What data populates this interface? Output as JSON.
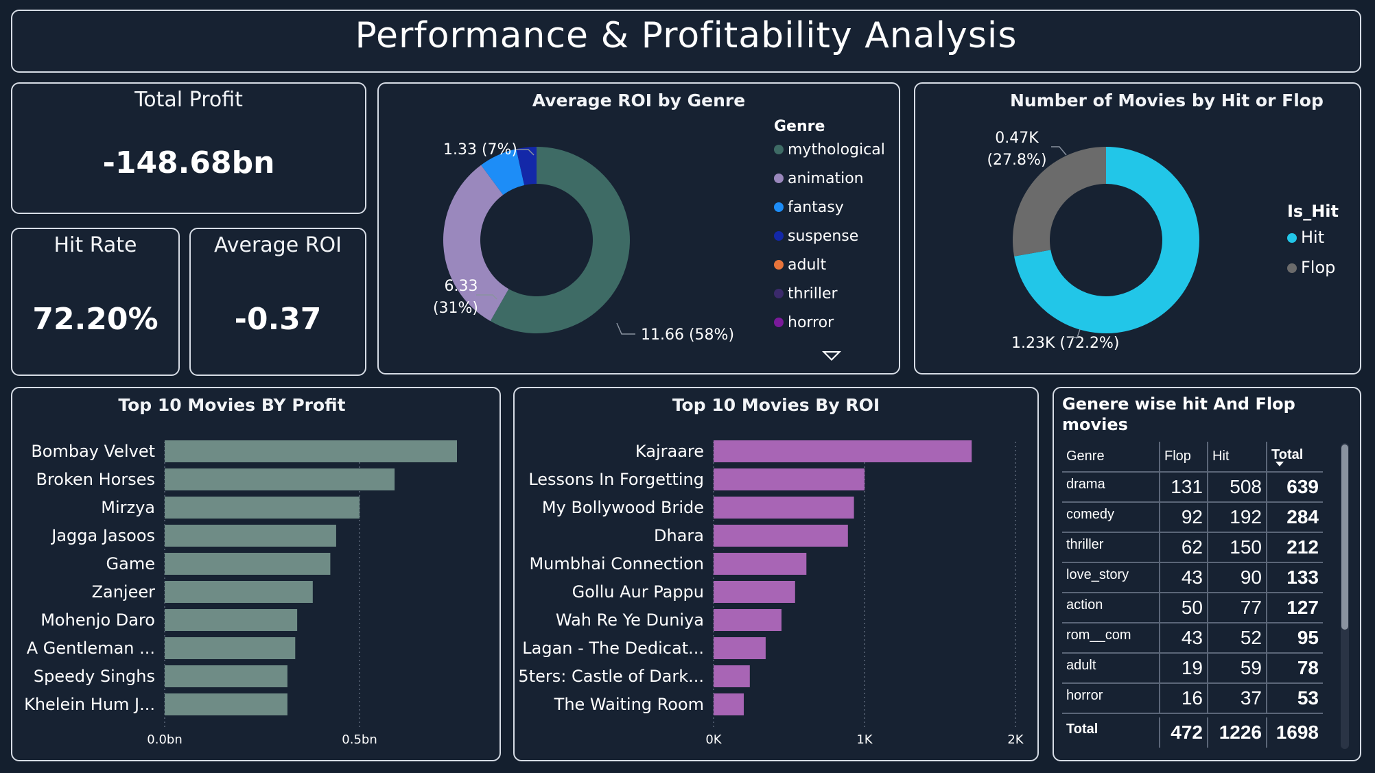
{
  "title": "Performance & Profitability Analysis",
  "kpis": {
    "total_profit": {
      "label": "Total Profit",
      "value": "-148.68bn"
    },
    "hit_rate": {
      "label": "Hit Rate",
      "value": "72.20%"
    },
    "avg_roi": {
      "label": "Average ROI",
      "value": "-0.37"
    }
  },
  "roi_by_genre": {
    "title": "Average ROI by Genre",
    "legend_title": "Genre",
    "legend": [
      {
        "name": "mythological",
        "color": "#3e6b65"
      },
      {
        "name": "animation",
        "color": "#9a88bd"
      },
      {
        "name": "fantasy",
        "color": "#1d8df7"
      },
      {
        "name": "suspense",
        "color": "#1328a8"
      },
      {
        "name": "adult",
        "color": "#e8743b"
      },
      {
        "name": "thriller",
        "color": "#3b2a6b"
      },
      {
        "name": "horror",
        "color": "#7a1a9a"
      }
    ],
    "labels": {
      "slice1": "11.66 (58%)",
      "slice2_line1": "6.33",
      "slice2_line2": "(31%)",
      "slice3": "1.33 (7%)"
    }
  },
  "hit_flop": {
    "title": "Number of Movies by Hit or Flop",
    "legend_title": "Is_Hit",
    "legend": [
      {
        "name": "Hit",
        "color": "#22c6e8"
      },
      {
        "name": "Flop",
        "color": "#6b6b6b"
      }
    ],
    "labels": {
      "hit": "1.23K (72.2%)",
      "flop_line1": "0.47K",
      "flop_line2": "(27.8%)"
    }
  },
  "genre_table": {
    "title_line1": "Genere wise hit And Flop",
    "title_line2": "movies",
    "headers": [
      "Genre",
      "Flop",
      "Hit",
      "Total"
    ],
    "rows": [
      [
        "drama",
        "131",
        "508",
        "639"
      ],
      [
        "comedy",
        "92",
        "192",
        "284"
      ],
      [
        "thriller",
        "62",
        "150",
        "212"
      ],
      [
        "love_story",
        "43",
        "90",
        "133"
      ],
      [
        "action",
        "50",
        "77",
        "127"
      ],
      [
        "rom__com",
        "43",
        "52",
        "95"
      ],
      [
        "adult",
        "19",
        "59",
        "78"
      ],
      [
        "horror",
        "16",
        "37",
        "53"
      ]
    ],
    "total": [
      "Total",
      "472",
      "1226",
      "1698"
    ]
  },
  "chart_data": [
    {
      "type": "pie",
      "title": "Average ROI by Genre",
      "categories": [
        "mythological",
        "animation",
        "fantasy",
        "suspense"
      ],
      "values": [
        11.66,
        6.33,
        1.33,
        0.7
      ],
      "colors": [
        "#3e6b65",
        "#9a88bd",
        "#1d8df7",
        "#1328a8"
      ],
      "donut": true
    },
    {
      "type": "pie",
      "title": "Number of Movies by Hit or Flop",
      "categories": [
        "Hit",
        "Flop"
      ],
      "values": [
        1226,
        472
      ],
      "colors": [
        "#22c6e8",
        "#6b6b6b"
      ],
      "donut": true
    },
    {
      "type": "bar",
      "orientation": "horizontal",
      "title": "Top 10 Movies BY Profit",
      "categories": [
        "Bombay Velvet",
        "Broken Horses",
        "Mirzya",
        "Jagga Jasoos",
        "Game",
        "Zanjeer",
        "Mohenjo Daro",
        "A Gentleman ...",
        "Speedy Singhs",
        "Khelein Hum J..."
      ],
      "values": [
        0.75,
        0.59,
        0.5,
        0.44,
        0.425,
        0.38,
        0.34,
        0.335,
        0.315,
        0.315
      ],
      "xticks": [
        "0.0bn",
        "0.5bn"
      ],
      "tick_values": [
        0,
        0.5
      ],
      "xlim": [
        0,
        0.75
      ],
      "color": "#6f8c86"
    },
    {
      "type": "bar",
      "orientation": "horizontal",
      "title": "Top 10 Movies By ROI",
      "categories": [
        "Kajraare",
        "Lessons In Forgetting",
        "My Bollywood Bride",
        "Dhara",
        "Mumbhai Connection",
        "Gollu Aur Pappu",
        "Wah Re Ye Duniya",
        "Lagan - The Dedicat...",
        "5ters: Castle of Dark...",
        "The Waiting Room"
      ],
      "values": [
        1710,
        1000,
        930,
        890,
        615,
        540,
        450,
        345,
        240,
        200
      ],
      "xticks": [
        "0K",
        "1K",
        "2K"
      ],
      "tick_values": [
        0,
        1000,
        2000
      ],
      "xlim": [
        0,
        2000
      ],
      "color": "#a865b5"
    }
  ]
}
